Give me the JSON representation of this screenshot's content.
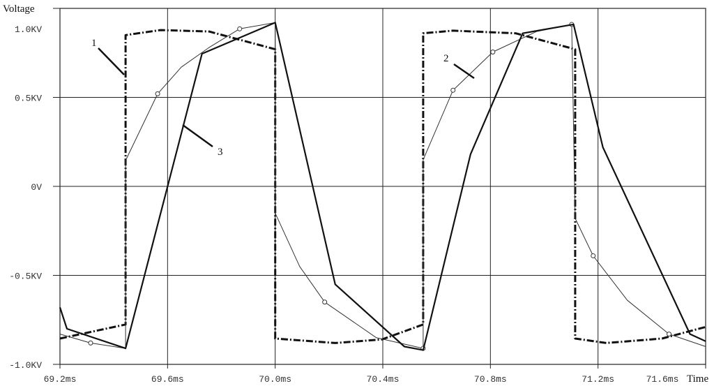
{
  "chart_data": {
    "type": "line",
    "title": "",
    "xlabel": "Time",
    "ylabel": "Voltage",
    "xlim": [
      69.2,
      71.6
    ],
    "ylim": [
      -1.0,
      1.0
    ],
    "x_unit": "ms",
    "y_unit": "KV",
    "grid": true,
    "x_ticks": [
      69.2,
      69.6,
      70.0,
      70.4,
      70.8,
      71.2,
      71.6
    ],
    "x_tick_labels": [
      "69.2ms",
      "69.6ms",
      "70.0ms",
      "70.4ms",
      "70.8ms",
      "71.2ms",
      "71.6ms"
    ],
    "y_ticks": [
      1.0,
      0.5,
      0,
      -0.5,
      -1.0
    ],
    "y_tick_labels": [
      "1.0KV",
      "0.5KV",
      "0V",
      "-0.5KV",
      "-1.0KV"
    ],
    "series": [
      {
        "style": "dash-dot-thick",
        "color": "#111111",
        "annotation": "1",
        "points": [
          [
            69.2,
            -0.855
          ],
          [
            69.444,
            -0.776
          ],
          [
            69.444,
            0.85
          ],
          [
            69.573,
            0.878
          ],
          [
            69.754,
            0.87
          ],
          [
            70.0,
            0.77
          ],
          [
            70.0,
            -0.855
          ],
          [
            70.223,
            -0.88
          ],
          [
            70.397,
            -0.86
          ],
          [
            70.55,
            -0.776
          ],
          [
            70.55,
            0.86
          ],
          [
            70.661,
            0.875
          ],
          [
            70.894,
            0.86
          ],
          [
            71.115,
            0.77
          ],
          [
            71.115,
            -0.855
          ],
          [
            71.231,
            -0.88
          ],
          [
            71.438,
            -0.855
          ],
          [
            71.6,
            -0.79
          ]
        ]
      },
      {
        "style": "thin-circle-markers",
        "color": "#333333",
        "annotation": "2",
        "points": [
          [
            69.2,
            -0.83
          ],
          [
            69.314,
            -0.88
          ],
          [
            69.444,
            -0.91
          ],
          [
            69.444,
            0.145
          ],
          [
            69.563,
            0.52
          ],
          [
            69.651,
            0.67
          ],
          [
            69.754,
            0.78
          ],
          [
            69.868,
            0.885
          ],
          [
            70.0,
            0.92
          ],
          [
            70.0,
            -0.15
          ],
          [
            70.091,
            -0.45
          ],
          [
            70.184,
            -0.65
          ],
          [
            70.376,
            -0.85
          ],
          [
            70.55,
            -0.91
          ],
          [
            70.55,
            0.15
          ],
          [
            70.661,
            0.54
          ],
          [
            70.809,
            0.755
          ],
          [
            70.972,
            0.87
          ],
          [
            71.102,
            0.91
          ],
          [
            71.115,
            -0.18
          ],
          [
            71.182,
            -0.39
          ],
          [
            71.309,
            -0.64
          ],
          [
            71.464,
            -0.83
          ],
          [
            71.6,
            -0.9
          ]
        ],
        "markers": [
          [
            69.314,
            -0.88
          ],
          [
            69.563,
            0.52
          ],
          [
            69.868,
            0.885
          ],
          [
            70.184,
            -0.65
          ],
          [
            70.55,
            -0.91
          ],
          [
            70.661,
            0.54
          ],
          [
            70.809,
            0.755
          ],
          [
            71.102,
            0.91
          ],
          [
            71.182,
            -0.39
          ],
          [
            71.464,
            -0.83
          ]
        ]
      },
      {
        "style": "solid-thick",
        "color": "#111111",
        "annotation": "3",
        "points": [
          [
            69.2,
            -0.68
          ],
          [
            69.226,
            -0.8
          ],
          [
            69.444,
            -0.91
          ],
          [
            69.728,
            0.745
          ],
          [
            70.0,
            0.92
          ],
          [
            70.223,
            -0.55
          ],
          [
            70.48,
            -0.9
          ],
          [
            70.55,
            -0.92
          ],
          [
            70.726,
            0.18
          ],
          [
            70.92,
            0.86
          ],
          [
            71.109,
            0.91
          ],
          [
            71.218,
            0.22
          ],
          [
            71.542,
            -0.83
          ],
          [
            71.6,
            -0.87
          ]
        ]
      }
    ]
  }
}
